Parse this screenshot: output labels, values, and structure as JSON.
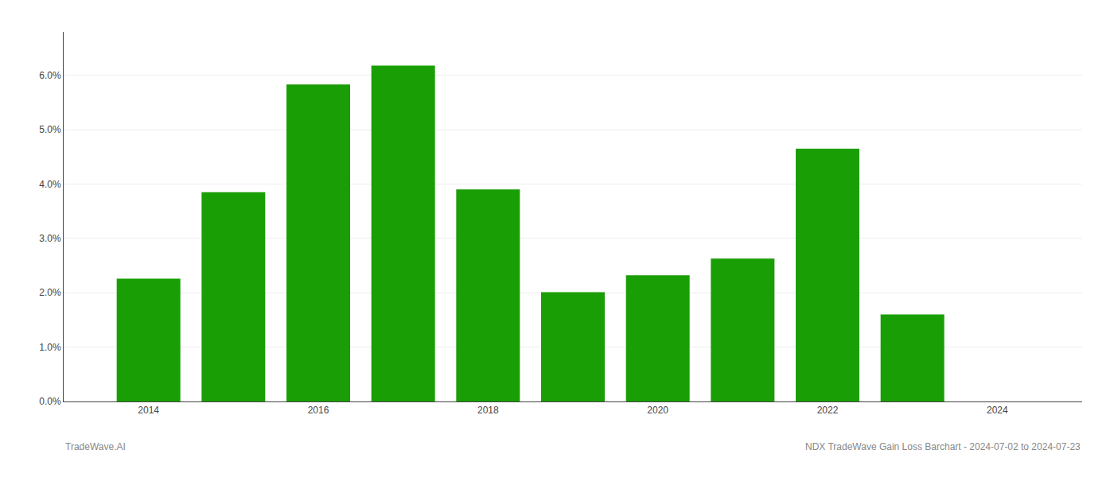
{
  "chart_data": {
    "type": "bar",
    "x": [
      2014,
      2015,
      2016,
      2017,
      2018,
      2019,
      2020,
      2021,
      2022,
      2023
    ],
    "values": [
      0.0226,
      0.0385,
      0.0583,
      0.0618,
      0.039,
      0.0201,
      0.0232,
      0.0263,
      0.0465,
      0.016
    ],
    "color": "#1a9e06",
    "xlim": [
      2013.0,
      2025.0
    ],
    "xticks": [
      2014,
      2016,
      2018,
      2020,
      2022,
      2024
    ],
    "ylim": [
      0,
      0.068
    ],
    "yticks": [
      {
        "value": 0.0,
        "label": "0.0%"
      },
      {
        "value": 0.01,
        "label": "1.0%"
      },
      {
        "value": 0.02,
        "label": "2.0%"
      },
      {
        "value": 0.03,
        "label": "3.0%"
      },
      {
        "value": 0.04,
        "label": "4.0%"
      },
      {
        "value": 0.05,
        "label": "5.0%"
      },
      {
        "value": 0.06,
        "label": "6.0%"
      }
    ],
    "grid": true,
    "annotations": [
      "TradeWave.AI",
      "NDX TradeWave Gain Loss Barchart - 2024-07-02 to 2024-07-23"
    ]
  }
}
